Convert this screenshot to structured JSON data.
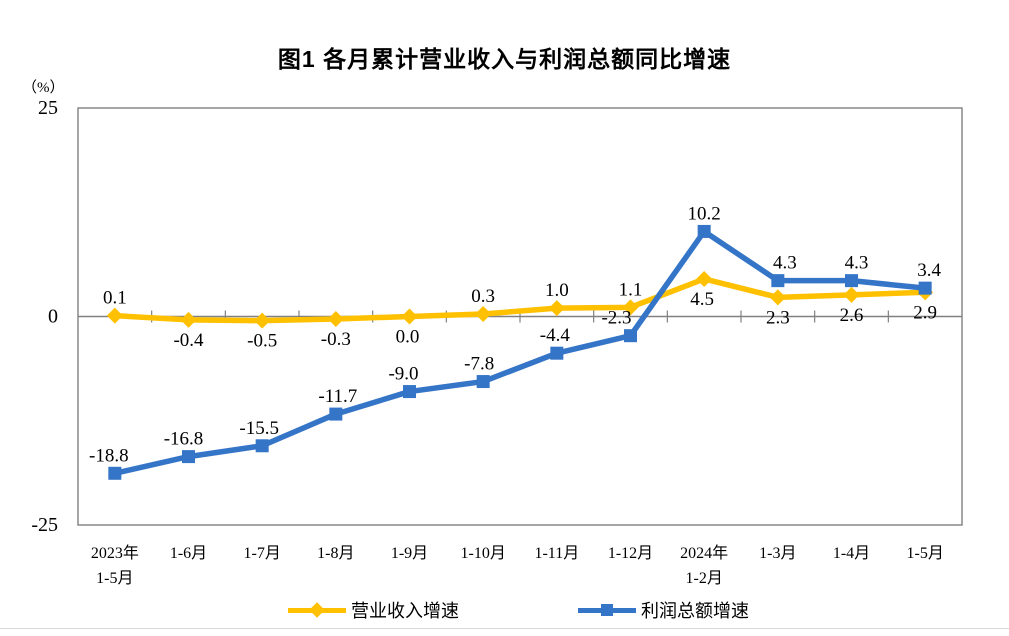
{
  "chart_data": {
    "type": "line",
    "title": "图1 各月累计营业收入与利润总额同比增速",
    "unit_label": "（%）",
    "ylim": [
      -25,
      25
    ],
    "yticks": [
      25,
      0,
      -25
    ],
    "grid": "zero-line-only",
    "legend_position": "bottom",
    "categories": [
      [
        "2023年",
        "1-5月"
      ],
      [
        "1-6月"
      ],
      [
        "1-7月"
      ],
      [
        "1-8月"
      ],
      [
        "1-9月"
      ],
      [
        "1-10月"
      ],
      [
        "1-11月"
      ],
      [
        "1-12月"
      ],
      [
        "2024年",
        "1-2月"
      ],
      [
        "1-3月"
      ],
      [
        "1-4月"
      ],
      [
        "1-5月"
      ]
    ],
    "series": [
      {
        "name": "营业收入增速",
        "color": "#FFC000",
        "marker": "diamond",
        "values": [
          0.1,
          -0.4,
          -0.5,
          -0.3,
          0.0,
          0.3,
          1.0,
          1.1,
          4.5,
          2.3,
          2.6,
          2.9
        ],
        "label_side": [
          "above",
          "below",
          "below",
          "below",
          "below",
          "above",
          "above",
          "above",
          "below",
          "below",
          "below",
          "below"
        ]
      },
      {
        "name": "利润总额增速",
        "color": "#3575C8",
        "marker": "square",
        "values": [
          -18.8,
          -16.8,
          -15.5,
          -11.7,
          -9.0,
          -7.8,
          -4.4,
          -2.3,
          10.2,
          4.3,
          4.3,
          3.4
        ],
        "label_side": [
          "above",
          "above",
          "above",
          "above",
          "above",
          "above",
          "above",
          "above",
          "above",
          "above",
          "above",
          "above"
        ]
      }
    ],
    "axis_color": "#808080",
    "text_color": "#000000"
  }
}
